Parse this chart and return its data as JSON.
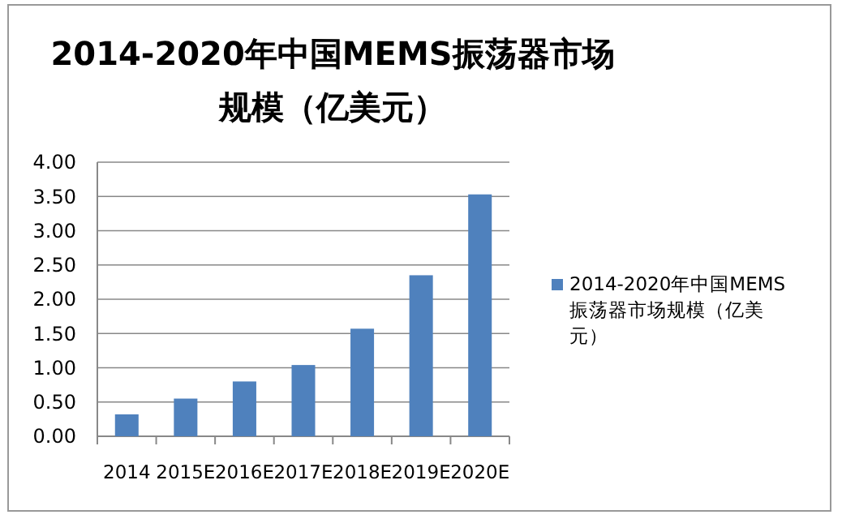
{
  "chart_data": {
    "type": "bar",
    "title": "2014-2020年中国MEMS振荡器市场规模（亿美元）",
    "categories": [
      "2014",
      "2015E",
      "2016E",
      "2017E",
      "2018E",
      "2019E",
      "2020E"
    ],
    "series": [
      {
        "name": "2014-2020年中国MEMS振荡器市场规模（亿美元）",
        "color": "#4f81bd",
        "values": [
          0.32,
          0.55,
          0.8,
          1.04,
          1.57,
          2.35,
          3.53
        ]
      }
    ],
    "ylim": [
      0,
      4
    ],
    "yticks": [
      {
        "value": 0,
        "label": "0.00"
      },
      {
        "value": 0.5,
        "label": "0.50"
      },
      {
        "value": 1,
        "label": "1.00"
      },
      {
        "value": 1.5,
        "label": "1.50"
      },
      {
        "value": 2,
        "label": "2.00"
      },
      {
        "value": 2.5,
        "label": "2.50"
      },
      {
        "value": 3,
        "label": "3.00"
      },
      {
        "value": 3.5,
        "label": "3.50"
      },
      {
        "value": 4,
        "label": "4.00"
      }
    ],
    "grid": "y",
    "legend": "right"
  }
}
